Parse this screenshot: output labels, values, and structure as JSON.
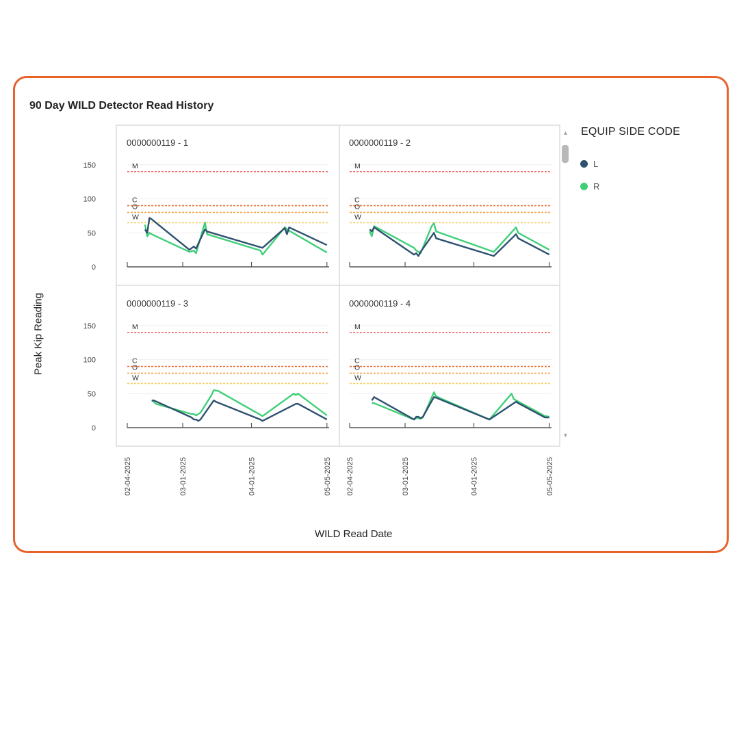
{
  "title": "90 Day WILD Detector Read History",
  "legend": {
    "title": "EQUIP SIDE CODE",
    "items": [
      {
        "label": "L",
        "color": "#2e5170"
      },
      {
        "label": "R",
        "color": "#3fcf78"
      }
    ]
  },
  "chart_data": {
    "type": "line",
    "title": "90 Day WILD Detector Read History",
    "xlabel": "WILD Read Date",
    "ylabel": "Peak Kip Reading",
    "y_ticks": [
      0,
      50,
      100,
      150
    ],
    "ylim": [
      0,
      150
    ],
    "x_ticks": [
      "02-04-2025",
      "03-01-2025",
      "04-01-2025",
      "05-05-2025"
    ],
    "xlim": [
      "2025-02-04",
      "2025-05-06"
    ],
    "thresholds": [
      {
        "label": "M",
        "value": 140,
        "color": "#f06a6a"
      },
      {
        "label": "C",
        "value": 90,
        "color": "#e8703a"
      },
      {
        "label": "O",
        "value": 80,
        "color": "#f4a64a"
      },
      {
        "label": "W",
        "value": 65,
        "color": "#f7cf6a"
      }
    ],
    "legend_position": "right",
    "panels": [
      {
        "title": "0000000119 - 1",
        "series": [
          {
            "name": "L",
            "x": [
              "2025-02-12",
              "2025-02-13",
              "2025-02-14",
              "2025-02-15",
              "2025-03-04",
              "2025-03-06",
              "2025-03-07",
              "2025-03-11",
              "2025-03-12",
              "2025-04-06",
              "2025-04-16",
              "2025-04-17",
              "2025-04-18",
              "2025-05-05"
            ],
            "y": [
              55,
              50,
              72,
              70,
              25,
              30,
              27,
              55,
              52,
              28,
              57,
              48,
              58,
              32
            ]
          },
          {
            "name": "R",
            "x": [
              "2025-02-12",
              "2025-02-13",
              "2025-02-14",
              "2025-02-15",
              "2025-03-04",
              "2025-03-06",
              "2025-03-07",
              "2025-03-11",
              "2025-03-12",
              "2025-04-05",
              "2025-04-06",
              "2025-04-16",
              "2025-04-17",
              "2025-05-05"
            ],
            "y": [
              62,
              45,
              50,
              48,
              22,
              24,
              20,
              65,
              48,
              24,
              18,
              58,
              55,
              21
            ]
          }
        ]
      },
      {
        "title": "0000000119 - 2",
        "series": [
          {
            "name": "L",
            "x": [
              "2025-02-13",
              "2025-02-14",
              "2025-02-15",
              "2025-03-05",
              "2025-03-06",
              "2025-03-07",
              "2025-03-08",
              "2025-03-14",
              "2025-03-15",
              "2025-04-10",
              "2025-04-20",
              "2025-04-21",
              "2025-05-05"
            ],
            "y": [
              55,
              52,
              58,
              18,
              20,
              16,
              22,
              50,
              42,
              16,
              48,
              42,
              18
            ]
          },
          {
            "name": "R",
            "x": [
              "2025-02-13",
              "2025-02-14",
              "2025-02-15",
              "2025-03-05",
              "2025-03-06",
              "2025-03-07",
              "2025-03-08",
              "2025-03-13",
              "2025-03-14",
              "2025-03-15",
              "2025-04-10",
              "2025-04-20",
              "2025-04-21",
              "2025-05-05"
            ],
            "y": [
              52,
              45,
              60,
              28,
              24,
              22,
              20,
              60,
              64,
              52,
              22,
              58,
              50,
              25
            ]
          }
        ]
      },
      {
        "title": "0000000119 - 3",
        "series": [
          {
            "name": "L",
            "x": [
              "2025-02-15",
              "2025-02-16",
              "2025-03-05",
              "2025-03-06",
              "2025-03-07",
              "2025-03-08",
              "2025-03-09",
              "2025-03-15",
              "2025-03-16",
              "2025-04-05",
              "2025-04-06",
              "2025-04-21",
              "2025-04-22",
              "2025-05-05"
            ],
            "y": [
              40,
              40,
              15,
              12,
              12,
              10,
              12,
              40,
              38,
              12,
              10,
              35,
              35,
              12
            ]
          },
          {
            "name": "R",
            "x": [
              "2025-02-15",
              "2025-02-16",
              "2025-02-17",
              "2025-03-05",
              "2025-03-06",
              "2025-03-07",
              "2025-03-09",
              "2025-03-14",
              "2025-03-15",
              "2025-03-17",
              "2025-04-06",
              "2025-04-20",
              "2025-04-21",
              "2025-04-22",
              "2025-05-05"
            ],
            "y": [
              40,
              38,
              35,
              20,
              20,
              18,
              22,
              48,
              55,
              54,
              17,
              50,
              48,
              50,
              18
            ]
          }
        ]
      },
      {
        "title": "0000000119 - 4",
        "series": [
          {
            "name": "L",
            "x": [
              "2025-02-14",
              "2025-02-15",
              "2025-03-05",
              "2025-03-06",
              "2025-03-07",
              "2025-03-08",
              "2025-03-09",
              "2025-03-14",
              "2025-03-15",
              "2025-04-08",
              "2025-04-19",
              "2025-04-20",
              "2025-04-21",
              "2025-05-03",
              "2025-05-05"
            ],
            "y": [
              40,
              45,
              12,
              16,
              16,
              14,
              16,
              45,
              44,
              12,
              36,
              38,
              36,
              15,
              15
            ]
          },
          {
            "name": "R",
            "x": [
              "2025-02-14",
              "2025-02-15",
              "2025-03-05",
              "2025-03-06",
              "2025-03-07",
              "2025-03-08",
              "2025-03-09",
              "2025-03-14",
              "2025-03-15",
              "2025-04-08",
              "2025-04-18",
              "2025-04-19",
              "2025-05-03",
              "2025-05-05"
            ],
            "y": [
              36,
              36,
              12,
              14,
              14,
              13,
              15,
              52,
              46,
              12,
              50,
              42,
              17,
              16
            ]
          }
        ]
      }
    ]
  }
}
